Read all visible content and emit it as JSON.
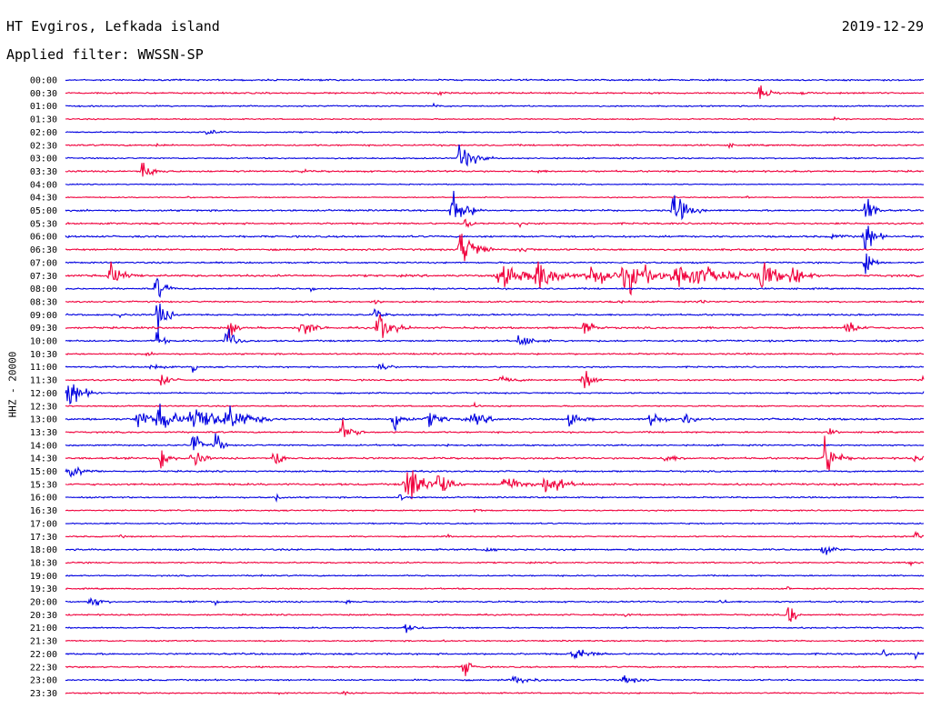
{
  "header": {
    "station": "HT Evgiros, Lefkada island",
    "date": "2019-12-29",
    "filter": "Applied filter: WWSSN-SP"
  },
  "chart_data": {
    "type": "line",
    "title": "HT Evgiros, Lefkada island",
    "subtitle": "Applied filter: WWSSN-SP",
    "ylabel": "HHZ - 20000",
    "xlabel": "",
    "colors": [
      "#0000e0",
      "#f0003c"
    ],
    "background": "#ffffff",
    "grid": false,
    "legend": "none",
    "traces": [
      {
        "time": "00:00",
        "color": "#0000e0",
        "noise": 1.2,
        "events": [
          [
            60,
            1.5,
            2
          ],
          [
            500,
            1,
            3
          ]
        ]
      },
      {
        "time": "00:30",
        "color": "#f0003c",
        "noise": 1.2,
        "events": [
          [
            410,
            3,
            4
          ],
          [
            765,
            6,
            10
          ],
          [
            810,
            1,
            6
          ]
        ]
      },
      {
        "time": "01:00",
        "color": "#0000e0",
        "noise": 1.0,
        "events": [
          [
            405,
            2.5,
            3
          ]
        ]
      },
      {
        "time": "01:30",
        "color": "#f0003c",
        "noise": 0.9,
        "events": [
          [
            845,
            2.5,
            6
          ]
        ]
      },
      {
        "time": "02:00",
        "color": "#0000e0",
        "noise": 1.0,
        "events": [
          [
            155,
            2,
            12
          ]
        ]
      },
      {
        "time": "02:30",
        "color": "#f0003c",
        "noise": 1.2,
        "events": [
          [
            5,
            1.5,
            3
          ],
          [
            100,
            2,
            3
          ],
          [
            730,
            2,
            4
          ]
        ]
      },
      {
        "time": "03:00",
        "color": "#0000e0",
        "noise": 1.0,
        "events": [
          [
            435,
            16,
            12
          ]
        ]
      },
      {
        "time": "03:30",
        "color": "#f0003c",
        "noise": 1.3,
        "events": [
          [
            85,
            9,
            10
          ],
          [
            260,
            2,
            4
          ],
          [
            520,
            2,
            4
          ]
        ]
      },
      {
        "time": "04:00",
        "color": "#0000e0",
        "noise": 0.8,
        "events": []
      },
      {
        "time": "04:30",
        "color": "#f0003c",
        "noise": 0.8,
        "events": [
          [
            135,
            1.5,
            2
          ],
          [
            750,
            1.5,
            2
          ]
        ]
      },
      {
        "time": "05:00",
        "color": "#0000e0",
        "noise": 1.3,
        "events": [
          [
            427,
            18,
            12
          ],
          [
            670,
            16,
            12
          ],
          [
            880,
            28,
            6
          ]
        ]
      },
      {
        "time": "05:30",
        "color": "#f0003c",
        "noise": 1.3,
        "events": [
          [
            440,
            4,
            8
          ],
          [
            500,
            2,
            4
          ]
        ]
      },
      {
        "time": "06:00",
        "color": "#0000e0",
        "noise": 1.4,
        "events": [
          [
            845,
            3,
            8
          ],
          [
            880,
            18,
            8
          ]
        ]
      },
      {
        "time": "06:30",
        "color": "#f0003c",
        "noise": 1.4,
        "events": [
          [
            436,
            22,
            12
          ],
          [
            500,
            3,
            8
          ]
        ]
      },
      {
        "time": "07:00",
        "color": "#0000e0",
        "noise": 1.2,
        "events": [
          [
            880,
            20,
            6
          ]
        ]
      },
      {
        "time": "07:30",
        "color": "#f0003c",
        "noise": 1.6,
        "events": [
          [
            50,
            11,
            12
          ],
          [
            480,
            10,
            25
          ],
          [
            520,
            14,
            18
          ],
          [
            580,
            12,
            20
          ],
          [
            620,
            14,
            25
          ],
          [
            680,
            13,
            40
          ],
          [
            765,
            15,
            14
          ],
          [
            800,
            10,
            12
          ]
        ]
      },
      {
        "time": "08:00",
        "color": "#0000e0",
        "noise": 1.2,
        "events": [
          [
            100,
            12,
            8
          ],
          [
            270,
            2,
            5
          ]
        ]
      },
      {
        "time": "08:30",
        "color": "#f0003c",
        "noise": 1.2,
        "events": [
          [
            340,
            3,
            5
          ],
          [
            600,
            2,
            8
          ],
          [
            700,
            2,
            6
          ]
        ]
      },
      {
        "time": "09:00",
        "color": "#0000e0",
        "noise": 1.3,
        "events": [
          [
            102,
            18,
            8
          ],
          [
            60,
            2,
            6
          ],
          [
            340,
            6,
            6
          ]
        ]
      },
      {
        "time": "09:30",
        "color": "#f0003c",
        "noise": 1.4,
        "events": [
          [
            180,
            14,
            5
          ],
          [
            260,
            10,
            10
          ],
          [
            345,
            15,
            12
          ],
          [
            570,
            12,
            8
          ],
          [
            860,
            8,
            10
          ]
        ]
      },
      {
        "time": "10:00",
        "color": "#0000e0",
        "noise": 1.3,
        "events": [
          [
            100,
            16,
            5
          ],
          [
            178,
            16,
            8
          ],
          [
            500,
            6,
            12
          ]
        ]
      },
      {
        "time": "10:30",
        "color": "#f0003c",
        "noise": 1.2,
        "events": [
          [
            90,
            1.5,
            5
          ]
        ]
      },
      {
        "time": "11:00",
        "color": "#0000e0",
        "noise": 1.1,
        "events": [
          [
            95,
            4,
            8
          ],
          [
            345,
            5,
            8
          ],
          [
            140,
            18,
            2
          ]
        ]
      },
      {
        "time": "11:30",
        "color": "#f0003c",
        "noise": 1.2,
        "events": [
          [
            105,
            7,
            8
          ],
          [
            480,
            3,
            12
          ],
          [
            570,
            14,
            8
          ],
          [
            945,
            25,
            6
          ]
        ]
      },
      {
        "time": "12:00",
        "color": "#0000e0",
        "noise": 1.1,
        "events": [
          [
            5,
            14,
            12
          ],
          [
            945,
            10,
            4
          ]
        ]
      },
      {
        "time": "12:30",
        "color": "#f0003c",
        "noise": 1.0,
        "events": [
          [
            450,
            4,
            3
          ]
        ]
      },
      {
        "time": "13:00",
        "color": "#0000e0",
        "noise": 1.5,
        "events": [
          [
            80,
            10,
            12
          ],
          [
            105,
            13,
            15
          ],
          [
            145,
            12,
            30
          ],
          [
            180,
            8,
            20
          ],
          [
            360,
            16,
            8
          ],
          [
            400,
            6,
            15
          ],
          [
            450,
            5,
            15
          ],
          [
            555,
            6,
            10
          ],
          [
            645,
            8,
            10
          ],
          [
            680,
            5,
            8
          ]
        ]
      },
      {
        "time": "13:30",
        "color": "#f0003c",
        "noise": 1.2,
        "events": [
          [
            305,
            9,
            10
          ],
          [
            840,
            3,
            6
          ]
        ]
      },
      {
        "time": "14:00",
        "color": "#0000e0",
        "noise": 1.2,
        "events": [
          [
            140,
            12,
            8
          ],
          [
            165,
            16,
            5
          ],
          [
            420,
            2,
            5
          ]
        ]
      },
      {
        "time": "14:30",
        "color": "#f0003c",
        "noise": 1.4,
        "events": [
          [
            105,
            14,
            6
          ],
          [
            140,
            13,
            8
          ],
          [
            230,
            14,
            6
          ],
          [
            660,
            4,
            10
          ],
          [
            835,
            22,
            10
          ],
          [
            935,
            3,
            8
          ]
        ]
      },
      {
        "time": "15:00",
        "color": "#0000e0",
        "noise": 1.2,
        "events": [
          [
            5,
            7,
            12
          ]
        ]
      },
      {
        "time": "15:30",
        "color": "#f0003c",
        "noise": 1.5,
        "events": [
          [
            378,
            18,
            20
          ],
          [
            410,
            10,
            10
          ],
          [
            485,
            10,
            14
          ],
          [
            530,
            12,
            14
          ]
        ]
      },
      {
        "time": "16:00",
        "color": "#0000e0",
        "noise": 1.1,
        "events": [
          [
            232,
            6,
            3
          ],
          [
            367,
            4,
            5
          ]
        ]
      },
      {
        "time": "16:30",
        "color": "#f0003c",
        "noise": 1.0,
        "events": [
          [
            450,
            2,
            4
          ]
        ]
      },
      {
        "time": "17:00",
        "color": "#0000e0",
        "noise": 1.0,
        "events": []
      },
      {
        "time": "17:30",
        "color": "#f0003c",
        "noise": 1.0,
        "events": [
          [
            60,
            2,
            4
          ],
          [
            420,
            2,
            4
          ],
          [
            935,
            6,
            5
          ]
        ]
      },
      {
        "time": "18:00",
        "color": "#0000e0",
        "noise": 1.3,
        "events": [
          [
            460,
            3,
            8
          ],
          [
            835,
            4,
            12
          ]
        ]
      },
      {
        "time": "18:30",
        "color": "#f0003c",
        "noise": 1.1,
        "events": [
          [
            930,
            2,
            6
          ]
        ]
      },
      {
        "time": "19:00",
        "color": "#0000e0",
        "noise": 1.0,
        "events": [
          [
            215,
            2,
            4
          ]
        ]
      },
      {
        "time": "19:30",
        "color": "#f0003c",
        "noise": 1.0,
        "events": [
          [
            795,
            3,
            3
          ]
        ]
      },
      {
        "time": "20:00",
        "color": "#0000e0",
        "noise": 1.2,
        "events": [
          [
            28,
            7,
            8
          ],
          [
            165,
            3,
            5
          ],
          [
            310,
            2,
            6
          ],
          [
            720,
            3,
            5
          ]
        ]
      },
      {
        "time": "20:30",
        "color": "#f0003c",
        "noise": 1.1,
        "events": [
          [
            615,
            2,
            4
          ],
          [
            795,
            20,
            5
          ]
        ]
      },
      {
        "time": "21:00",
        "color": "#0000e0",
        "noise": 1.1,
        "events": [
          [
            375,
            4,
            8
          ]
        ]
      },
      {
        "time": "21:30",
        "color": "#f0003c",
        "noise": 1.0,
        "events": [
          [
            415,
            1.5,
            4
          ]
        ]
      },
      {
        "time": "22:00",
        "color": "#0000e0",
        "noise": 1.3,
        "events": [
          [
            560,
            7,
            12
          ],
          [
            900,
            3,
            5
          ],
          [
            935,
            4,
            4
          ]
        ]
      },
      {
        "time": "22:30",
        "color": "#f0003c",
        "noise": 1.1,
        "events": [
          [
            438,
            12,
            6
          ]
        ]
      },
      {
        "time": "23:00",
        "color": "#0000e0",
        "noise": 1.2,
        "events": [
          [
            495,
            4,
            15
          ],
          [
            615,
            4,
            12
          ]
        ]
      },
      {
        "time": "23:30",
        "color": "#f0003c",
        "noise": 1.0,
        "events": [
          [
            235,
            1.5,
            2
          ],
          [
            305,
            3,
            3
          ]
        ]
      }
    ]
  }
}
